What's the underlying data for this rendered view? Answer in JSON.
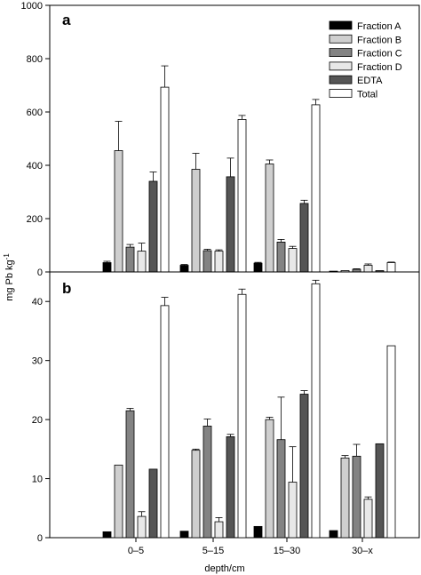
{
  "figure": {
    "ylabel_main": "mg Pb kg",
    "ylabel_sup": "-1",
    "xlabel": "depth/cm"
  },
  "chart_data": [
    {
      "type": "bar",
      "panel": "a",
      "categories": [
        "0–5",
        "5–15",
        "15–30",
        "30–x"
      ],
      "ylim": [
        0,
        1000
      ],
      "yticks": [
        0,
        200,
        400,
        600,
        800,
        1000
      ],
      "legend_position": "top-right",
      "series": [
        {
          "name": "Fraction A",
          "color": "#000000",
          "values": [
            35,
            25,
            33,
            3
          ],
          "errors": [
            5,
            3,
            3,
            0
          ]
        },
        {
          "name": "Fraction B",
          "color": "#cfcfcf",
          "values": [
            455,
            385,
            405,
            5
          ],
          "errors": [
            110,
            60,
            15,
            0
          ]
        },
        {
          "name": "Fraction C",
          "color": "#838383",
          "values": [
            93,
            80,
            112,
            10
          ],
          "errors": [
            10,
            5,
            10,
            2
          ]
        },
        {
          "name": "Fraction D",
          "color": "#e8e8e8",
          "values": [
            78,
            78,
            88,
            25
          ],
          "errors": [
            30,
            5,
            8,
            5
          ]
        },
        {
          "name": "EDTA",
          "color": "#555555",
          "values": [
            340,
            357,
            257,
            5
          ],
          "errors": [
            35,
            70,
            12,
            0
          ]
        },
        {
          "name": "Total",
          "color": "#ffffff",
          "values": [
            693,
            572,
            627,
            35
          ],
          "errors": [
            80,
            15,
            20,
            2
          ]
        }
      ]
    },
    {
      "type": "bar",
      "panel": "b",
      "categories": [
        "0–5",
        "5–15",
        "15–30",
        "30–x"
      ],
      "ylim": [
        0,
        45
      ],
      "yticks": [
        0,
        10,
        20,
        30,
        40
      ],
      "series": [
        {
          "name": "Fraction A",
          "color": "#000000",
          "values": [
            1.0,
            1.1,
            1.9,
            1.2
          ],
          "errors": [
            0,
            0,
            0,
            0
          ]
        },
        {
          "name": "Fraction B",
          "color": "#cfcfcf",
          "values": [
            12.3,
            14.8,
            20.0,
            13.5
          ],
          "errors": [
            0,
            0.2,
            0.4,
            0.4
          ]
        },
        {
          "name": "Fraction C",
          "color": "#838383",
          "values": [
            21.5,
            18.9,
            16.6,
            13.8
          ],
          "errors": [
            0.4,
            1.2,
            7.2,
            2.0
          ]
        },
        {
          "name": "Fraction D",
          "color": "#e8e8e8",
          "values": [
            3.6,
            2.7,
            9.4,
            6.5
          ],
          "errors": [
            0.8,
            0.7,
            6.0,
            0.4
          ]
        },
        {
          "name": "EDTA",
          "color": "#555555",
          "values": [
            11.6,
            17.1,
            24.3,
            15.9
          ],
          "errors": [
            0,
            0.4,
            0.6,
            0
          ]
        },
        {
          "name": "Total",
          "color": "#ffffff",
          "values": [
            39.3,
            41.2,
            43.0,
            32.5
          ],
          "errors": [
            1.4,
            0.9,
            0.6,
            0
          ]
        }
      ]
    }
  ]
}
